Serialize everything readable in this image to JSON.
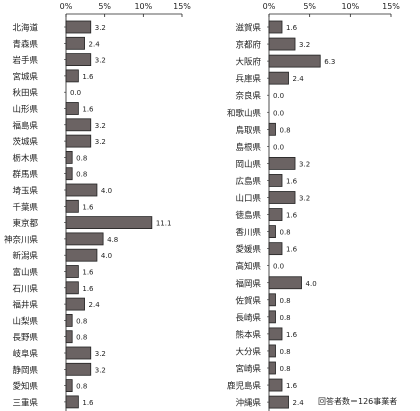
{
  "chart_data": [
    {
      "type": "bar",
      "orientation": "horizontal",
      "categories": [
        "北海道",
        "青森県",
        "岩手県",
        "宮城県",
        "秋田県",
        "山形県",
        "福島県",
        "茨城県",
        "栃木県",
        "群馬県",
        "埼玉県",
        "千葉県",
        "東京都",
        "神奈川県",
        "新潟県",
        "富山県",
        "石川県",
        "福井県",
        "山梨県",
        "長野県",
        "岐阜県",
        "静岡県",
        "愛知県",
        "三重県"
      ],
      "values": [
        3.2,
        2.4,
        3.2,
        1.6,
        0.0,
        1.6,
        3.2,
        3.2,
        0.8,
        0.8,
        4.0,
        1.6,
        11.1,
        4.8,
        4.0,
        1.6,
        1.6,
        2.4,
        0.8,
        0.8,
        3.2,
        3.2,
        0.8,
        1.6
      ],
      "value_labels": [
        "3.2",
        "2.4",
        "3.2",
        "1.6",
        "0.0",
        "1.6",
        "3.2",
        "3.2",
        "0.8",
        "0.8",
        "4.0",
        "1.6",
        "11.1",
        "4.8",
        "4.0",
        "1.6",
        "1.6",
        "2.4",
        "0.8",
        "0.8",
        "3.2",
        "3.2",
        "0.8",
        "1.6"
      ],
      "xlim": [
        0,
        15
      ],
      "xticks": [
        "0%",
        "5%",
        "10%",
        "15%"
      ],
      "title": "",
      "xlabel": "",
      "ylabel": ""
    },
    {
      "type": "bar",
      "orientation": "horizontal",
      "categories": [
        "滋賀県",
        "京都府",
        "大阪府",
        "兵庫県",
        "奈良県",
        "和歌山県",
        "鳥取県",
        "島根県",
        "岡山県",
        "広島県",
        "山口県",
        "徳島県",
        "香川県",
        "愛媛県",
        "高知県",
        "福岡県",
        "佐賀県",
        "長崎県",
        "熊本県",
        "大分県",
        "宮崎県",
        "鹿児島県",
        "沖縄県"
      ],
      "values": [
        1.6,
        3.2,
        6.3,
        2.4,
        0.0,
        0.0,
        0.8,
        0.0,
        3.2,
        1.6,
        3.2,
        1.6,
        0.8,
        1.6,
        0.0,
        4.0,
        0.8,
        0.8,
        1.6,
        0.8,
        0.8,
        1.6,
        2.4
      ],
      "value_labels": [
        "1.6",
        "3.2",
        "6.3",
        "2.4",
        "0.0",
        "0.0",
        "0.8",
        "0.0",
        "3.2",
        "1.6",
        "3.2",
        "1.6",
        "0.8",
        "1.6",
        "0.0",
        "4.0",
        "0.8",
        "0.8",
        "1.6",
        "0.8",
        "0.8",
        "1.6",
        "2.4"
      ],
      "xlim": [
        0,
        15
      ],
      "xticks": [
        "0%",
        "5%",
        "10%",
        "15%"
      ],
      "title": "",
      "xlabel": "",
      "ylabel": ""
    }
  ],
  "note": "回答者数＝126事業者",
  "colors": {
    "bar_fill": "#6b6363",
    "bar_stroke": "#222222",
    "axis": "#222222"
  }
}
